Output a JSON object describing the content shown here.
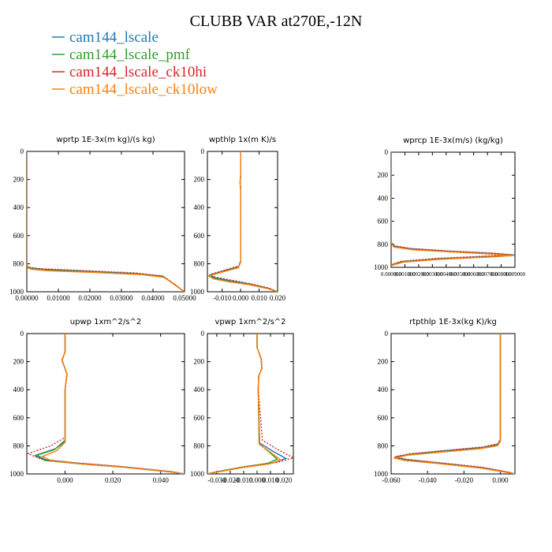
{
  "title": "CLUBB VAR at270E,-12N",
  "legend": [
    {
      "name": "cam144_lscale",
      "color": "#1f77b4"
    },
    {
      "name": "cam144_lscale_pmf",
      "color": "#2ca02c"
    },
    {
      "name": "cam144_lscale_ck10hi",
      "color": "#d62728"
    },
    {
      "name": "cam144_lscale_ck10low",
      "color": "#ff7f0e"
    }
  ],
  "chart_data": [
    {
      "type": "line",
      "title": "wprtp  1E-3x(m kg)/(s kg)",
      "xlim": [
        0,
        0.05
      ],
      "ylim": [
        1000,
        0
      ],
      "xticks": [
        "0.00000",
        "0.01000",
        "0.02000",
        "0.03000",
        "0.04000",
        "0.05000"
      ],
      "xtick_values": [
        0,
        0.01,
        0.02,
        0.03,
        0.04,
        0.05
      ],
      "yticks": [
        "0",
        "200",
        "400",
        "600",
        "800",
        "1000"
      ],
      "yscale": 1,
      "series": [
        {
          "x": [
            0,
            0,
            0,
            0.0002,
            0.001,
            0.005,
            0.02,
            0.035,
            0.0432,
            0.0448,
            0.047,
            0.05
          ],
          "y": [
            0,
            600,
            780,
            820,
            830,
            840,
            855,
            870,
            890,
            915,
            950,
            1000
          ]
        },
        {
          "x": [
            0,
            0,
            0,
            0.0003,
            0.0015,
            0.006,
            0.021,
            0.036,
            0.0433,
            0.0449,
            0.047,
            0.05
          ],
          "y": [
            0,
            600,
            785,
            825,
            835,
            845,
            860,
            875,
            895,
            918,
            952,
            1000
          ]
        },
        {
          "x": [
            0,
            0,
            0,
            0.0001,
            0.0008,
            0.004,
            0.019,
            0.034,
            0.043,
            0.0447,
            0.047,
            0.05
          ],
          "y": [
            0,
            600,
            775,
            815,
            825,
            835,
            850,
            865,
            887,
            912,
            948,
            1000
          ]
        },
        {
          "x": [
            0,
            0,
            0,
            0.0003,
            0.0016,
            0.0065,
            0.0215,
            0.0365,
            0.0434,
            0.045,
            0.0472,
            0.05
          ],
          "y": [
            0,
            600,
            790,
            830,
            840,
            850,
            863,
            878,
            897,
            920,
            955,
            1000
          ]
        }
      ]
    },
    {
      "type": "line",
      "title": "wpthlp  1x(m K)/s",
      "xlim": [
        -0.018,
        0.02
      ],
      "ylim": [
        1000,
        0
      ],
      "xticks": [
        "-0.010",
        "0.000",
        "0.010",
        "0.020"
      ],
      "xtick_values": [
        -0.01,
        0,
        0.01,
        0.02
      ],
      "yticks": [
        "0",
        "200",
        "400",
        "600",
        "800",
        "1000"
      ],
      "yscale": 1,
      "series": [
        {
          "x": [
            0,
            0,
            -0.0003,
            0,
            0,
            -0.001,
            -0.009,
            -0.0165,
            -0.014,
            -0.006,
            0.005,
            0.015,
            0.02
          ],
          "y": [
            0,
            170,
            220,
            270,
            780,
            820,
            850,
            880,
            900,
            920,
            945,
            975,
            1000
          ]
        },
        {
          "x": [
            0,
            0,
            -0.0003,
            0,
            0,
            -0.0012,
            -0.0095,
            -0.017,
            -0.0145,
            -0.0065,
            0.0048,
            0.0148,
            0.02
          ],
          "y": [
            0,
            170,
            220,
            270,
            785,
            825,
            855,
            885,
            905,
            925,
            948,
            977,
            1000
          ]
        },
        {
          "x": [
            0,
            0,
            -0.0003,
            0,
            0,
            -0.0008,
            -0.0085,
            -0.0162,
            -0.0138,
            -0.0058,
            0.0052,
            0.0152,
            0.02
          ],
          "y": [
            0,
            170,
            220,
            270,
            775,
            815,
            845,
            875,
            895,
            915,
            942,
            973,
            1000
          ]
        },
        {
          "x": [
            0,
            0,
            -0.0003,
            0,
            0,
            -0.0013,
            -0.01,
            -0.0172,
            -0.0148,
            -0.0068,
            0.0046,
            0.0146,
            0.02
          ],
          "y": [
            0,
            170,
            220,
            270,
            790,
            830,
            860,
            888,
            908,
            928,
            950,
            978,
            1000
          ]
        }
      ]
    },
    {
      "type": "line",
      "title": "wprcp  1E-3x(m/s) (kg/kg)",
      "xlim": [
        0,
        0.009
      ],
      "ylim": [
        1000,
        0
      ],
      "xticks": [
        "0.000000",
        "0.001000",
        "0.002000",
        "0.003000",
        "0.004000",
        "0.005000",
        "0.006000",
        "0.007000",
        "0.008000",
        "0.009000"
      ],
      "xtick_values": [
        0,
        0.001,
        0.002,
        0.003,
        0.004,
        0.005,
        0.006,
        0.007,
        0.008,
        0.009
      ],
      "yticks": [
        "0",
        "200",
        "400",
        "600",
        "800",
        "1000"
      ],
      "yscale": 1,
      "series": [
        {
          "x": [
            0,
            0,
            0.0002,
            0.0015,
            0.0045,
            0.0075,
            0.009,
            0.0072,
            0.0035,
            0.0008,
            0
          ],
          "y": [
            0,
            780,
            815,
            840,
            862,
            880,
            893,
            905,
            925,
            950,
            980
          ]
        },
        {
          "x": [
            0,
            0,
            0.0002,
            0.0015,
            0.0045,
            0.0074,
            0.0088,
            0.0071,
            0.0034,
            0.0008,
            0
          ],
          "y": [
            0,
            785,
            820,
            845,
            866,
            884,
            896,
            908,
            928,
            952,
            982
          ]
        },
        {
          "x": [
            0,
            0,
            0.0001,
            0.0013,
            0.0043,
            0.0073,
            0.0087,
            0.007,
            0.0033,
            0.0007,
            0
          ],
          "y": [
            0,
            775,
            810,
            835,
            858,
            876,
            890,
            902,
            922,
            948,
            978
          ]
        },
        {
          "x": [
            0,
            0,
            0.0002,
            0.0016,
            0.0046,
            0.0075,
            0.0089,
            0.0072,
            0.0036,
            0.0009,
            0
          ],
          "y": [
            0,
            790,
            825,
            848,
            868,
            886,
            898,
            910,
            930,
            955,
            985
          ]
        }
      ]
    },
    {
      "type": "line",
      "title": "upwp  1xm^2/s^2",
      "xlim": [
        -0.016,
        0.05
      ],
      "ylim": [
        1000,
        0
      ],
      "xticks": [
        "0.000",
        "0.020",
        "0.040"
      ],
      "xtick_values": [
        0,
        0.02,
        0.04
      ],
      "yticks": [
        "0",
        "200",
        "400",
        "600",
        "800",
        "1000"
      ],
      "yscale": 1,
      "series": [
        {
          "x": [
            0,
            0,
            -0.0012,
            0.0008,
            0,
            0,
            -0.004,
            -0.012,
            -0.008,
            0.006,
            0.025,
            0.045,
            0.05
          ],
          "y": [
            0,
            130,
            190,
            290,
            400,
            760,
            820,
            865,
            900,
            925,
            950,
            985,
            1000
          ]
        },
        {
          "x": [
            0,
            0,
            -0.0012,
            0.0008,
            0,
            0,
            -0.0045,
            -0.0125,
            -0.0082,
            0.0058,
            0.0245,
            0.0445,
            0.05
          ],
          "y": [
            0,
            130,
            190,
            290,
            400,
            770,
            828,
            870,
            905,
            928,
            952,
            987,
            1000
          ]
        },
        {
          "x": [
            0,
            0,
            -0.0014,
            0.0009,
            0,
            0,
            -0.006,
            -0.0155,
            -0.01,
            0.004,
            0.0235,
            0.044,
            0.05
          ],
          "y": [
            0,
            130,
            190,
            290,
            400,
            740,
            800,
            855,
            895,
            920,
            948,
            983,
            1000
          ]
        },
        {
          "x": [
            0,
            0,
            -0.0012,
            0.0008,
            0,
            0,
            -0.0035,
            -0.0095,
            -0.0055,
            0.0075,
            0.0265,
            0.0455,
            0.05
          ],
          "y": [
            0,
            130,
            190,
            290,
            400,
            775,
            835,
            875,
            908,
            930,
            955,
            988,
            1000
          ]
        }
      ]
    },
    {
      "type": "line",
      "title": "vpwp  1xm^2/s^2",
      "xlim": [
        -0.037,
        0.027
      ],
      "ylim": [
        1000,
        0
      ],
      "xticks": [
        "-0.030",
        "-0.020",
        "-0.010",
        "0.000",
        "0.010",
        "0.020"
      ],
      "xtick_values": [
        -0.03,
        -0.02,
        -0.01,
        0,
        0.01,
        0.02
      ],
      "yticks": [
        "0",
        "200",
        "400",
        "600",
        "800",
        "1000"
      ],
      "yscale": 1,
      "series": [
        {
          "x": [
            0,
            0,
            0.003,
            0.0035,
            0.0012,
            0.0008,
            0.002,
            0.012,
            0.0215,
            0.012,
            -0.01,
            -0.03,
            -0.037
          ],
          "y": [
            0,
            100,
            180,
            250,
            300,
            400,
            780,
            840,
            890,
            920,
            950,
            985,
            1000
          ]
        },
        {
          "x": [
            0,
            0,
            0.003,
            0.0035,
            0.0012,
            0.0008,
            0.0015,
            0.009,
            0.015,
            0.008,
            -0.012,
            -0.031,
            -0.037
          ],
          "y": [
            0,
            100,
            180,
            250,
            300,
            400,
            785,
            845,
            895,
            925,
            953,
            987,
            1000
          ]
        },
        {
          "x": [
            0,
            0,
            0.0032,
            0.0037,
            0.0013,
            0.0009,
            0.004,
            0.016,
            0.027,
            0.015,
            -0.008,
            -0.029,
            -0.037
          ],
          "y": [
            0,
            100,
            180,
            250,
            300,
            400,
            760,
            830,
            885,
            918,
            948,
            983,
            1000
          ]
        },
        {
          "x": [
            0,
            0,
            0.003,
            0.0035,
            0.0012,
            0.0008,
            0.0018,
            0.0105,
            0.0175,
            0.0095,
            -0.011,
            -0.0305,
            -0.037
          ],
          "y": [
            0,
            100,
            180,
            250,
            300,
            400,
            790,
            850,
            900,
            928,
            955,
            988,
            1000
          ]
        }
      ]
    },
    {
      "type": "line",
      "title": "rtpthlp  1E-3x(kg K)/kg",
      "xlim": [
        -0.06,
        0.008
      ],
      "ylim": [
        1000,
        0
      ],
      "xticks": [
        "-0.060",
        "-0.040",
        "-0.020",
        "0.000"
      ],
      "xtick_values": [
        -0.06,
        -0.04,
        -0.02,
        0
      ],
      "yticks": [
        "0",
        "200",
        "400",
        "600",
        "800",
        "1000"
      ],
      "yscale": 1,
      "series": [
        {
          "x": [
            0,
            0,
            -0.0015,
            -0.01,
            -0.03,
            -0.05,
            -0.058,
            -0.052,
            -0.035,
            -0.01,
            0.005,
            0.008
          ],
          "y": [
            0,
            760,
            790,
            812,
            835,
            860,
            880,
            898,
            920,
            955,
            990,
            1000
          ]
        },
        {
          "x": [
            0,
            0,
            -0.0016,
            -0.0105,
            -0.0305,
            -0.0505,
            -0.0582,
            -0.0522,
            -0.0352,
            -0.0102,
            0.0049,
            0.008
          ],
          "y": [
            0,
            765,
            795,
            817,
            840,
            864,
            884,
            901,
            922,
            957,
            991,
            1000
          ]
        },
        {
          "x": [
            0,
            0,
            -0.0014,
            -0.0098,
            -0.0298,
            -0.0498,
            -0.0578,
            -0.0518,
            -0.0348,
            -0.0098,
            0.0051,
            0.008
          ],
          "y": [
            0,
            755,
            785,
            808,
            832,
            857,
            877,
            895,
            918,
            953,
            989,
            1000
          ]
        },
        {
          "x": [
            0,
            0,
            -0.0017,
            -0.011,
            -0.031,
            -0.051,
            -0.0585,
            -0.0525,
            -0.0355,
            -0.0105,
            0.0048,
            0.008
          ],
          "y": [
            0,
            770,
            800,
            820,
            843,
            867,
            887,
            904,
            925,
            959,
            992,
            1000
          ]
        }
      ]
    }
  ]
}
